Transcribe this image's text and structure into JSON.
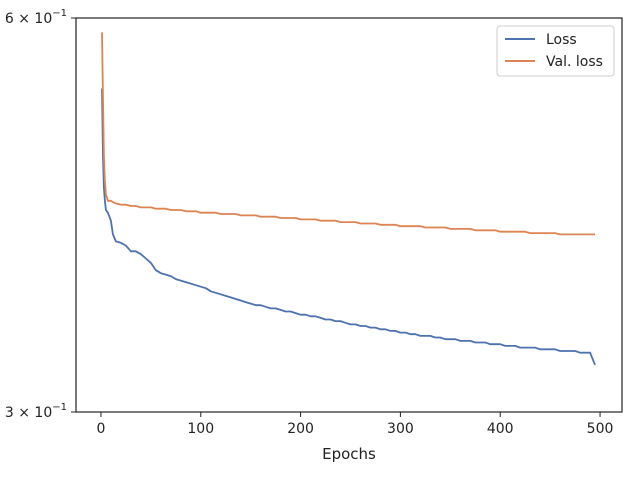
{
  "chart_data": {
    "type": "line",
    "title": "",
    "xlabel": "Epochs",
    "ylabel": "",
    "yscale": "log",
    "xlim": [
      -25,
      522
    ],
    "ylim": [
      0.3,
      0.6
    ],
    "x_ticks": [
      0,
      100,
      200,
      300,
      400,
      500
    ],
    "x_tick_labels": [
      "0",
      "100",
      "200",
      "300",
      "400",
      "500"
    ],
    "y_ticks": [
      0.3,
      0.6
    ],
    "y_tick_labels": [
      "3 × 10^-1",
      "6 × 10^-1"
    ],
    "grid": false,
    "legend_position": "top-right",
    "series": [
      {
        "name": "Loss",
        "color": "#4c72b0",
        "x": [
          1,
          2,
          3,
          4,
          5,
          7,
          10,
          12,
          15,
          20,
          25,
          30,
          35,
          40,
          45,
          50,
          55,
          60,
          65,
          70,
          75,
          80,
          85,
          90,
          95,
          100,
          105,
          110,
          115,
          120,
          125,
          130,
          135,
          140,
          145,
          150,
          155,
          160,
          165,
          170,
          175,
          180,
          185,
          190,
          195,
          200,
          205,
          210,
          215,
          220,
          225,
          230,
          235,
          240,
          245,
          250,
          255,
          260,
          265,
          270,
          275,
          280,
          285,
          290,
          295,
          300,
          305,
          310,
          315,
          320,
          325,
          330,
          335,
          340,
          345,
          350,
          355,
          360,
          365,
          370,
          375,
          380,
          385,
          390,
          395,
          400,
          405,
          410,
          415,
          420,
          425,
          430,
          435,
          440,
          445,
          450,
          455,
          460,
          465,
          470,
          475,
          480,
          485,
          490,
          495
        ],
        "y": [
          0.53,
          0.47,
          0.445,
          0.435,
          0.428,
          0.426,
          0.42,
          0.41,
          0.405,
          0.404,
          0.402,
          0.398,
          0.398,
          0.396,
          0.393,
          0.39,
          0.385,
          0.383,
          0.382,
          0.381,
          0.379,
          0.378,
          0.377,
          0.376,
          0.375,
          0.374,
          0.373,
          0.371,
          0.37,
          0.369,
          0.368,
          0.367,
          0.366,
          0.365,
          0.364,
          0.363,
          0.362,
          0.362,
          0.361,
          0.36,
          0.36,
          0.359,
          0.358,
          0.358,
          0.357,
          0.356,
          0.356,
          0.355,
          0.355,
          0.354,
          0.353,
          0.353,
          0.352,
          0.352,
          0.351,
          0.35,
          0.35,
          0.349,
          0.349,
          0.348,
          0.348,
          0.347,
          0.347,
          0.346,
          0.346,
          0.345,
          0.345,
          0.344,
          0.344,
          0.343,
          0.343,
          0.343,
          0.342,
          0.342,
          0.341,
          0.341,
          0.341,
          0.34,
          0.34,
          0.34,
          0.339,
          0.339,
          0.339,
          0.338,
          0.338,
          0.338,
          0.337,
          0.337,
          0.337,
          0.336,
          0.336,
          0.336,
          0.336,
          0.335,
          0.335,
          0.335,
          0.335,
          0.334,
          0.334,
          0.334,
          0.334,
          0.333,
          0.333,
          0.333,
          0.326
        ]
      },
      {
        "name": "Val. loss",
        "color": "#dd8452",
        "x": [
          1,
          2,
          3,
          4,
          5,
          7,
          10,
          12,
          15,
          20,
          25,
          30,
          35,
          40,
          45,
          50,
          55,
          60,
          65,
          70,
          75,
          80,
          85,
          90,
          95,
          100,
          105,
          110,
          115,
          120,
          125,
          130,
          135,
          140,
          145,
          150,
          155,
          160,
          165,
          170,
          175,
          180,
          185,
          190,
          195,
          200,
          205,
          210,
          215,
          220,
          225,
          230,
          235,
          240,
          245,
          250,
          255,
          260,
          265,
          270,
          275,
          280,
          285,
          290,
          295,
          300,
          305,
          310,
          315,
          320,
          325,
          330,
          335,
          340,
          345,
          350,
          355,
          360,
          365,
          370,
          375,
          380,
          385,
          390,
          395,
          400,
          405,
          410,
          415,
          420,
          425,
          430,
          435,
          440,
          445,
          450,
          455,
          460,
          465,
          470,
          475,
          480,
          485,
          490,
          495
        ],
        "y": [
          0.585,
          0.52,
          0.47,
          0.45,
          0.44,
          0.435,
          0.435,
          0.434,
          0.433,
          0.432,
          0.432,
          0.431,
          0.431,
          0.43,
          0.43,
          0.43,
          0.429,
          0.429,
          0.429,
          0.428,
          0.428,
          0.428,
          0.427,
          0.427,
          0.427,
          0.426,
          0.426,
          0.426,
          0.426,
          0.425,
          0.425,
          0.425,
          0.425,
          0.424,
          0.424,
          0.424,
          0.424,
          0.423,
          0.423,
          0.423,
          0.423,
          0.422,
          0.422,
          0.422,
          0.422,
          0.421,
          0.421,
          0.421,
          0.421,
          0.42,
          0.42,
          0.42,
          0.42,
          0.419,
          0.419,
          0.419,
          0.419,
          0.418,
          0.418,
          0.418,
          0.418,
          0.417,
          0.417,
          0.417,
          0.417,
          0.416,
          0.416,
          0.416,
          0.416,
          0.416,
          0.415,
          0.415,
          0.415,
          0.415,
          0.415,
          0.414,
          0.414,
          0.414,
          0.414,
          0.414,
          0.413,
          0.413,
          0.413,
          0.413,
          0.413,
          0.412,
          0.412,
          0.412,
          0.412,
          0.412,
          0.412,
          0.411,
          0.411,
          0.411,
          0.411,
          0.411,
          0.411,
          0.41,
          0.41,
          0.41,
          0.41,
          0.41,
          0.41,
          0.41,
          0.41
        ]
      }
    ]
  }
}
